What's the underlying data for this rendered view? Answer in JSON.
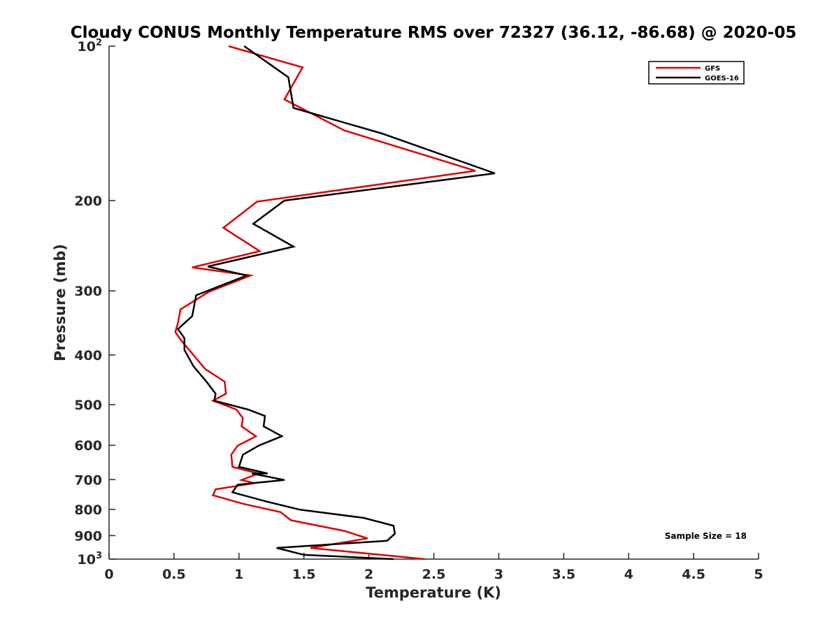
{
  "chart_data": {
    "type": "line",
    "title": "Cloudy CONUS Monthly Temperature RMS over 72327 (36.12, -86.68) @ 2020-05",
    "xlabel": "Temperature (K)",
    "ylabel": "Pressure (mb)",
    "xlim": [
      0,
      5
    ],
    "ylim": [
      100,
      1000
    ],
    "y_scale": "log",
    "y_reversed": true,
    "x_ticks": [
      0,
      0.5,
      1,
      1.5,
      2,
      2.5,
      3,
      3.5,
      4,
      4.5,
      5
    ],
    "x_tick_labels": [
      "0",
      "0.5",
      "1",
      "1.5",
      "2",
      "2.5",
      "3",
      "3.5",
      "4",
      "4.5",
      "5"
    ],
    "y_ticks": [
      100,
      200,
      300,
      400,
      500,
      600,
      700,
      800,
      900,
      1000
    ],
    "y_tick_labels": [
      {
        "base": "10",
        "exp": "2"
      },
      {
        "base": "200",
        "exp": ""
      },
      {
        "base": "300",
        "exp": ""
      },
      {
        "base": "400",
        "exp": ""
      },
      {
        "base": "500",
        "exp": ""
      },
      {
        "base": "600",
        "exp": ""
      },
      {
        "base": "700",
        "exp": ""
      },
      {
        "base": "800",
        "exp": ""
      },
      {
        "base": "900",
        "exp": ""
      },
      {
        "base": "10",
        "exp": "3"
      }
    ],
    "legend_position": "top-right",
    "annotation": "Sample Size = 18",
    "series": [
      {
        "name": "GFS",
        "color": "#e00000",
        "x": [
          0.92,
          1.49,
          1.35,
          1.81,
          2.82,
          1.14,
          0.88,
          1.16,
          0.64,
          1.09,
          0.77,
          0.55,
          0.53,
          0.51,
          0.56,
          0.74,
          0.89,
          0.9,
          0.8,
          0.98,
          1.03,
          1.02,
          1.13,
          0.99,
          0.94,
          0.95,
          1.15,
          1.02,
          1.12,
          0.82,
          0.8,
          1.04,
          1.32,
          1.4,
          1.81,
          1.99,
          1.55,
          2.43
        ],
        "y": [
          100,
          110,
          127,
          146,
          175,
          201,
          226,
          251,
          270,
          280,
          301,
          326,
          346,
          361,
          376,
          426,
          451,
          476,
          491,
          511,
          531,
          551,
          576,
          601,
          626,
          661,
          681,
          701,
          711,
          731,
          751,
          781,
          810,
          840,
          881,
          911,
          951,
          1000
        ]
      },
      {
        "name": "GOES-16",
        "color": "#000000",
        "x": [
          1.04,
          1.38,
          1.42,
          2.1,
          2.97,
          1.35,
          1.11,
          1.42,
          0.76,
          1.06,
          0.67,
          0.64,
          0.53,
          0.58,
          0.58,
          0.65,
          0.75,
          0.82,
          0.81,
          1.07,
          1.2,
          1.19,
          1.33,
          1.15,
          1.03,
          1.0,
          1.22,
          1.1,
          1.35,
          0.99,
          0.95,
          1.2,
          1.47,
          1.96,
          2.19,
          2.2,
          2.14,
          1.29,
          1.5,
          2.19
        ],
        "y": [
          100,
          115,
          132,
          148,
          177,
          200,
          222,
          246,
          269,
          280,
          306,
          336,
          356,
          371,
          391,
          421,
          451,
          476,
          491,
          511,
          526,
          551,
          576,
          601,
          626,
          661,
          681,
          681,
          701,
          716,
          741,
          771,
          801,
          831,
          861,
          892,
          921,
          951,
          981,
          1000
        ]
      }
    ]
  }
}
